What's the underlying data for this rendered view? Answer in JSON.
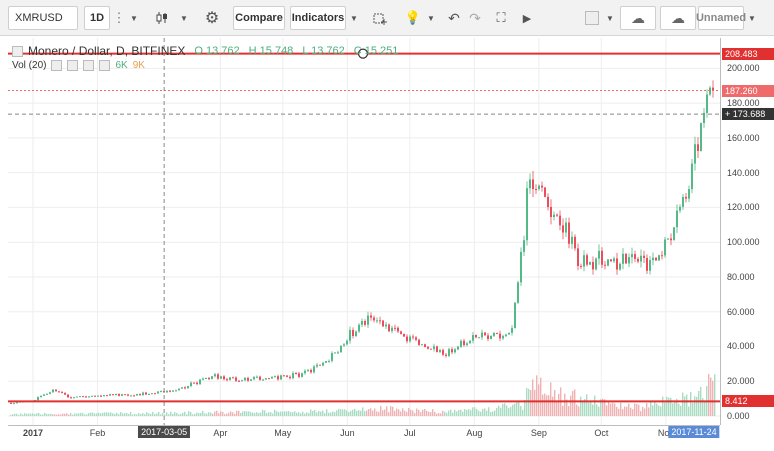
{
  "toolbar": {
    "symbol": "XMRUSD",
    "interval": "1D",
    "compare_label": "Compare",
    "indicators_label": "Indicators",
    "layout_name": "Unnamed"
  },
  "legend": {
    "title": "Monero / Dollar, D, BITFINEX",
    "open": "O 13.762",
    "high": "H 15.748",
    "low": "L 13.762",
    "close": "C 15.251",
    "volume_label": "Vol (20)",
    "volume_value": "6K",
    "volume_ma": "9K"
  },
  "y_axis": {
    "ticks": [
      "200.000",
      "180.000",
      "160.000",
      "140.000",
      "120.000",
      "100.000",
      "80.000",
      "60.000",
      "40.000",
      "20.000",
      "0.000"
    ],
    "badges": [
      {
        "label": "208.483",
        "value": 208.483,
        "color": "#e03030"
      },
      {
        "label": "187.260",
        "value": 187.26,
        "color": "#ef6a6a"
      },
      {
        "label": "173.688",
        "value": 173.688,
        "color": "#333333"
      },
      {
        "label": "8.412",
        "value": 8.412,
        "color": "#e03030"
      }
    ]
  },
  "x_axis": {
    "ticks": [
      {
        "label": "2017",
        "date": "2017-01-01"
      },
      {
        "label": "Feb",
        "date": "2017-02-01"
      },
      {
        "label": "Apr",
        "date": "2017-04-01"
      },
      {
        "label": "May",
        "date": "2017-05-01"
      },
      {
        "label": "Jun",
        "date": "2017-06-01"
      },
      {
        "label": "Jul",
        "date": "2017-07-01"
      },
      {
        "label": "Aug",
        "date": "2017-08-01"
      },
      {
        "label": "Sep",
        "date": "2017-09-01"
      },
      {
        "label": "Oct",
        "date": "2017-10-01"
      },
      {
        "label": "Nov",
        "date": "2017-11-01"
      }
    ],
    "badges": [
      {
        "label": "2017-03-05",
        "date": "2017-03-05"
      },
      {
        "label": "2017-11-24",
        "date": "2017-11-24"
      }
    ]
  },
  "chart_data": {
    "type": "line",
    "xlabel": "",
    "ylabel": "",
    "ylim": [
      0,
      210
    ],
    "grid": true,
    "horizontal_lines": [
      208.483,
      8.412
    ],
    "price_path": [
      [
        "2016-12-20",
        7.5
      ],
      [
        "2017-01-01",
        9
      ],
      [
        "2017-01-10",
        15
      ],
      [
        "2017-01-18",
        11
      ],
      [
        "2017-02-01",
        12
      ],
      [
        "2017-02-20",
        12.5
      ],
      [
        "2017-03-05",
        14
      ],
      [
        "2017-03-15",
        17
      ],
      [
        "2017-03-28",
        23
      ],
      [
        "2017-04-10",
        21
      ],
      [
        "2017-04-25",
        22
      ],
      [
        "2017-05-10",
        24
      ],
      [
        "2017-05-20",
        30
      ],
      [
        "2017-05-27",
        38
      ],
      [
        "2017-06-02",
        47
      ],
      [
        "2017-06-10",
        55
      ],
      [
        "2017-06-20",
        50
      ],
      [
        "2017-07-01",
        44
      ],
      [
        "2017-07-12",
        38
      ],
      [
        "2017-07-18",
        36
      ],
      [
        "2017-07-25",
        42
      ],
      [
        "2017-08-05",
        46
      ],
      [
        "2017-08-18",
        48
      ],
      [
        "2017-08-24",
        100
      ],
      [
        "2017-08-27",
        142
      ],
      [
        "2017-09-02",
        128
      ],
      [
        "2017-09-12",
        112
      ],
      [
        "2017-09-20",
        88
      ],
      [
        "2017-10-01",
        90
      ],
      [
        "2017-10-15",
        88
      ],
      [
        "2017-10-25",
        86
      ],
      [
        "2017-11-05",
        110
      ],
      [
        "2017-11-12",
        135
      ],
      [
        "2017-11-17",
        165
      ],
      [
        "2017-11-21",
        195
      ],
      [
        "2017-11-24",
        176
      ]
    ],
    "volume_path": [
      [
        "2017-01-01",
        2
      ],
      [
        "2017-03-05",
        3
      ],
      [
        "2017-05-27",
        5
      ],
      [
        "2017-06-10",
        8
      ],
      [
        "2017-07-18",
        4
      ],
      [
        "2017-08-24",
        10
      ],
      [
        "2017-08-27",
        30
      ],
      [
        "2017-09-12",
        20
      ],
      [
        "2017-10-15",
        8
      ],
      [
        "2017-11-12",
        18
      ],
      [
        "2017-11-21",
        30
      ]
    ]
  }
}
